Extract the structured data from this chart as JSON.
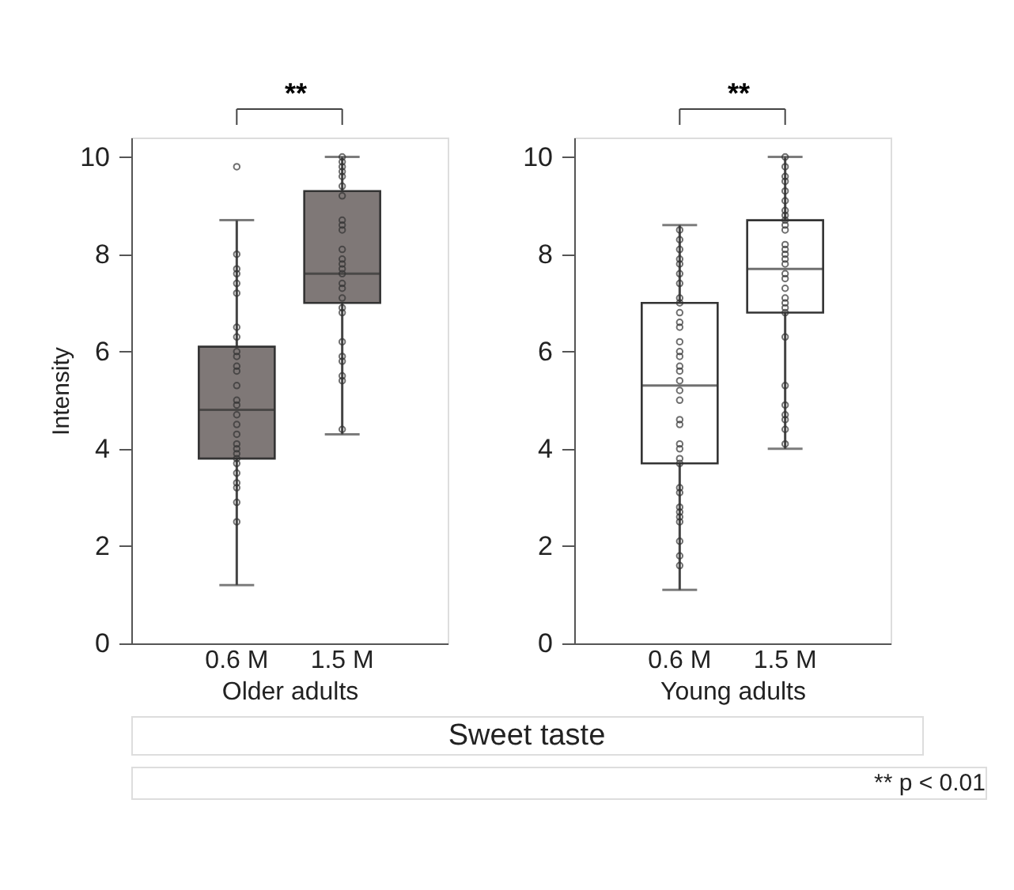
{
  "chart_data": [
    {
      "type": "box",
      "categories": [
        "0.6 M",
        "1.5 M"
      ],
      "xlabel": "Older adults",
      "ylabel": "Intensity",
      "ylim": [
        0,
        10.4
      ],
      "yticks": [
        0,
        2,
        4,
        6,
        8,
        10
      ],
      "grid": false,
      "series": [
        {
          "type": "box",
          "color": "#7f7877",
          "boxes": [
            {
              "low": 1.2,
              "q1": 3.8,
              "median": 4.8,
              "q3": 6.1,
              "high": 8.7,
              "outliers": [
                9.8
              ]
            },
            {
              "low": 4.3,
              "q1": 7.0,
              "median": 7.6,
              "q3": 9.3,
              "high": 10.0
            }
          ]
        },
        {
          "type": "scatter",
          "color": "#333333",
          "marker": "circle",
          "x": [
            "0.6 M",
            "0.6 M",
            "0.6 M",
            "0.6 M",
            "0.6 M",
            "0.6 M",
            "0.6 M",
            "0.6 M",
            "0.6 M",
            "0.6 M",
            "0.6 M",
            "0.6 M",
            "0.6 M",
            "0.6 M",
            "0.6 M",
            "0.6 M",
            "0.6 M",
            "0.6 M",
            "0.6 M",
            "0.6 M",
            "0.6 M",
            "0.6 M",
            "0.6 M",
            "0.6 M",
            "0.6 M",
            "0.6 M",
            "0.6 M",
            "1.5 M",
            "1.5 M",
            "1.5 M",
            "1.5 M",
            "1.5 M",
            "1.5 M",
            "1.5 M",
            "1.5 M",
            "1.5 M",
            "1.5 M",
            "1.5 M",
            "1.5 M",
            "1.5 M",
            "1.5 M",
            "1.5 M",
            "1.5 M",
            "1.5 M",
            "1.5 M",
            "1.5 M",
            "1.5 M",
            "1.5 M",
            "1.5 M",
            "1.5 M",
            "1.5 M",
            "1.5 M",
            "1.5 M"
          ],
          "values": [
            8.0,
            7.7,
            7.6,
            7.4,
            7.2,
            6.5,
            6.3,
            6.0,
            5.9,
            5.7,
            5.6,
            5.3,
            5.0,
            4.9,
            4.7,
            4.5,
            4.3,
            4.1,
            4.0,
            3.9,
            3.8,
            3.7,
            3.5,
            3.3,
            3.2,
            2.9,
            2.5,
            10.0,
            9.9,
            9.8,
            9.7,
            9.6,
            9.4,
            9.2,
            8.7,
            8.6,
            8.5,
            8.1,
            7.9,
            7.8,
            7.7,
            7.6,
            7.4,
            7.3,
            7.1,
            6.9,
            6.8,
            6.2,
            5.9,
            5.8,
            5.5,
            5.4,
            4.4
          ]
        }
      ],
      "annotations": [
        "**"
      ]
    },
    {
      "type": "box",
      "categories": [
        "0.6 M",
        "1.5 M"
      ],
      "xlabel": "Young adults",
      "ylim": [
        0,
        10.4
      ],
      "yticks": [
        0,
        2,
        4,
        6,
        8,
        10
      ],
      "grid": false,
      "series": [
        {
          "type": "box",
          "color": "#ffffff",
          "boxes": [
            {
              "low": 1.1,
              "q1": 3.7,
              "median": 5.3,
              "q3": 7.0,
              "high": 8.6
            },
            {
              "low": 4.0,
              "q1": 6.8,
              "median": 7.7,
              "q3": 8.7,
              "high": 10.0
            }
          ]
        },
        {
          "type": "scatter",
          "color": "#333333",
          "marker": "circle",
          "x": [
            "0.6 M",
            "0.6 M",
            "0.6 M",
            "0.6 M",
            "0.6 M",
            "0.6 M",
            "0.6 M",
            "0.6 M",
            "0.6 M",
            "0.6 M",
            "0.6 M",
            "0.6 M",
            "0.6 M",
            "0.6 M",
            "0.6 M",
            "0.6 M",
            "0.6 M",
            "0.6 M",
            "0.6 M",
            "0.6 M",
            "0.6 M",
            "0.6 M",
            "0.6 M",
            "0.6 M",
            "0.6 M",
            "0.6 M",
            "0.6 M",
            "0.6 M",
            "0.6 M",
            "0.6 M",
            "0.6 M",
            "0.6 M",
            "0.6 M",
            "0.6 M",
            "0.6 M",
            "1.5 M",
            "1.5 M",
            "1.5 M",
            "1.5 M",
            "1.5 M",
            "1.5 M",
            "1.5 M",
            "1.5 M",
            "1.5 M",
            "1.5 M",
            "1.5 M",
            "1.5 M",
            "1.5 M",
            "1.5 M",
            "1.5 M",
            "1.5 M",
            "1.5 M",
            "1.5 M",
            "1.5 M",
            "1.5 M",
            "1.5 M",
            "1.5 M",
            "1.5 M",
            "1.5 M",
            "1.5 M",
            "1.5 M",
            "1.5 M",
            "1.5 M",
            "1.5 M",
            "1.5 M"
          ],
          "values": [
            8.5,
            8.3,
            8.1,
            7.9,
            7.8,
            7.6,
            7.4,
            7.1,
            7.0,
            6.8,
            6.6,
            6.5,
            6.2,
            6.0,
            5.9,
            5.7,
            5.6,
            5.4,
            5.2,
            5.0,
            4.6,
            4.5,
            4.1,
            4.0,
            3.8,
            3.7,
            3.2,
            3.1,
            2.8,
            2.7,
            2.6,
            2.5,
            2.1,
            1.8,
            1.6,
            10.0,
            9.8,
            9.6,
            9.5,
            9.3,
            9.1,
            8.9,
            8.8,
            8.7,
            8.6,
            8.5,
            8.2,
            8.1,
            8.0,
            7.9,
            7.8,
            7.6,
            7.5,
            7.3,
            7.1,
            7.0,
            6.9,
            6.8,
            6.3,
            5.3,
            4.9,
            4.7,
            4.6,
            4.4,
            4.1
          ]
        }
      ],
      "annotations": [
        "**",
        "Sweet taste",
        "** p < 0.01"
      ]
    }
  ]
}
